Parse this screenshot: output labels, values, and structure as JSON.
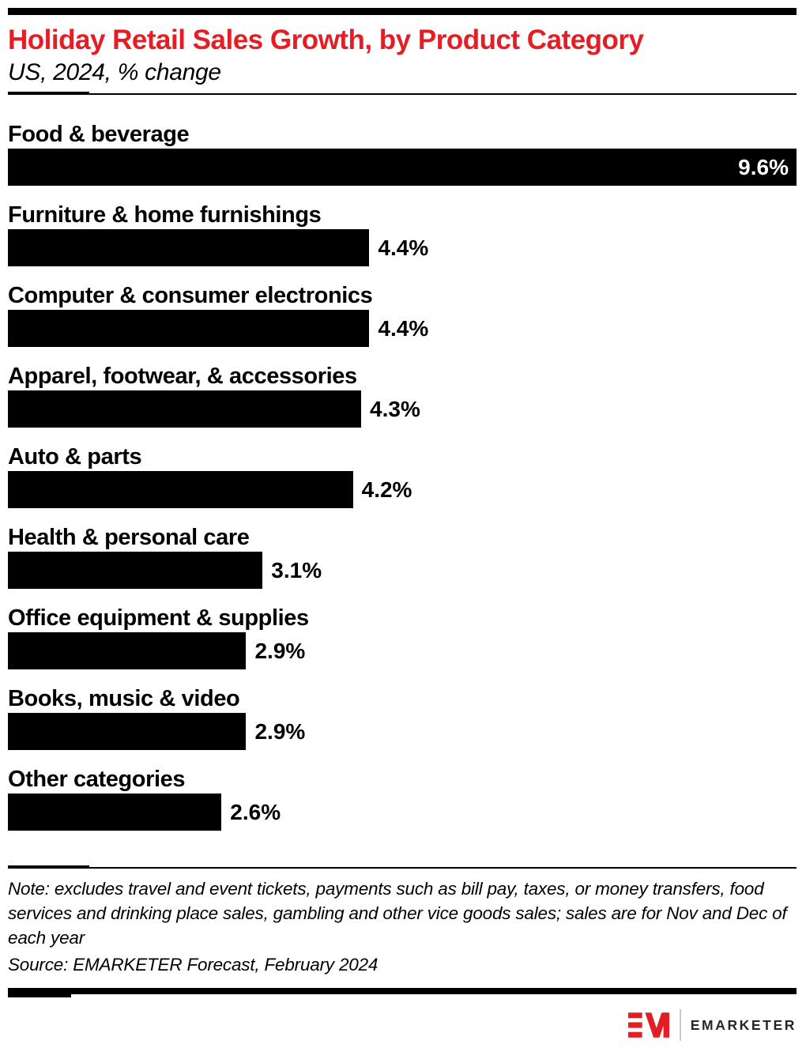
{
  "header": {
    "title": "Holiday Retail Sales Growth, by Product Category",
    "subtitle": "US, 2024, % change"
  },
  "chart_data": {
    "type": "bar",
    "orientation": "horizontal",
    "title": "Holiday Retail Sales Growth, by Product Category",
    "subtitle": "US, 2024, % change",
    "unit": "%",
    "xlim": [
      0,
      9.6
    ],
    "max_value": 9.6,
    "grid": false,
    "legend": false,
    "bar_color": "#000000",
    "categories": [
      "Food & beverage",
      "Furniture & home furnishings",
      "Computer & consumer electronics",
      "Apparel, footwear, & accessories",
      "Auto & parts",
      "Health & personal care",
      "Office equipment & supplies",
      "Books, music & video",
      "Other categories"
    ],
    "values": [
      9.6,
      4.4,
      4.4,
      4.3,
      4.2,
      3.1,
      2.9,
      2.9,
      2.6
    ],
    "items": [
      {
        "label": "Food & beverage",
        "value": 9.6,
        "display_value": "9.6%"
      },
      {
        "label": "Furniture & home furnishings",
        "value": 4.4,
        "display_value": "4.4%"
      },
      {
        "label": "Computer & consumer electronics",
        "value": 4.4,
        "display_value": "4.4%"
      },
      {
        "label": "Apparel, footwear, & accessories",
        "value": 4.3,
        "display_value": "4.3%"
      },
      {
        "label": "Auto & parts",
        "value": 4.2,
        "display_value": "4.2%"
      },
      {
        "label": "Health & personal care",
        "value": 3.1,
        "display_value": "3.1%"
      },
      {
        "label": "Office equipment & supplies",
        "value": 2.9,
        "display_value": "2.9%"
      },
      {
        "label": "Books, music & video",
        "value": 2.9,
        "display_value": "2.9%"
      },
      {
        "label": "Other categories",
        "value": 2.6,
        "display_value": "2.6%"
      }
    ]
  },
  "footer": {
    "note": "Note: excludes travel and event tickets, payments such as bill pay, taxes, or money transfers, food services and drinking place sales, gambling and other vice goods sales; sales are for Nov and Dec of each year",
    "source": "Source: EMARKETER Forecast, February 2024"
  },
  "branding": {
    "logo_mark": "EM",
    "logo_text": "EMARKETER"
  },
  "colors": {
    "accent_red": "#e31e25",
    "bar": "#000000",
    "logo_divider_gray": "#c9c9c9",
    "logo_text_color": "#262626"
  }
}
